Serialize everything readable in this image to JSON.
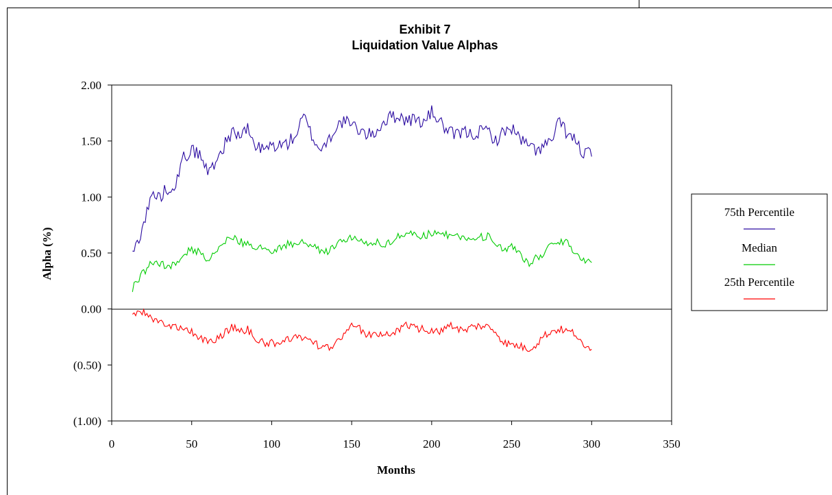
{
  "chart_data": {
    "type": "line",
    "title": "Exhibit 7",
    "subtitle": "Liquidation Value Alphas",
    "xlabel": "Months",
    "ylabel": "Alpha (%)",
    "xlim": [
      0,
      350
    ],
    "ylim": [
      -1.0,
      2.0
    ],
    "x_ticks": [
      "0",
      "50",
      "100",
      "150",
      "200",
      "250",
      "300",
      "350"
    ],
    "y_ticks": [
      "2.00",
      "1.50",
      "1.00",
      "0.50",
      "0.00",
      "(0.50)",
      "(1.00)"
    ],
    "x_tick_values": [
      0,
      50,
      100,
      150,
      200,
      250,
      300,
      350
    ],
    "y_tick_values": [
      2.0,
      1.5,
      1.0,
      0.5,
      0.0,
      -0.5,
      -1.0
    ],
    "grid": false,
    "zero_line": true,
    "legend_position": "right",
    "x_start": 13,
    "x_end": 300,
    "series": [
      {
        "name": "75th Percentile",
        "color": "#2a0aa0",
        "anchors": [
          [
            13,
            0.48
          ],
          [
            20,
            0.76
          ],
          [
            25,
            1.02
          ],
          [
            30,
            1.0
          ],
          [
            35,
            1.08
          ],
          [
            40,
            1.12
          ],
          [
            45,
            1.35
          ],
          [
            50,
            1.42
          ],
          [
            55,
            1.38
          ],
          [
            60,
            1.22
          ],
          [
            65,
            1.32
          ],
          [
            70,
            1.45
          ],
          [
            75,
            1.58
          ],
          [
            80,
            1.55
          ],
          [
            85,
            1.6
          ],
          [
            90,
            1.45
          ],
          [
            95,
            1.42
          ],
          [
            100,
            1.46
          ],
          [
            105,
            1.46
          ],
          [
            110,
            1.48
          ],
          [
            115,
            1.55
          ],
          [
            120,
            1.72
          ],
          [
            125,
            1.55
          ],
          [
            130,
            1.42
          ],
          [
            135,
            1.5
          ],
          [
            140,
            1.62
          ],
          [
            145,
            1.68
          ],
          [
            150,
            1.64
          ],
          [
            155,
            1.6
          ],
          [
            160,
            1.55
          ],
          [
            165,
            1.58
          ],
          [
            170,
            1.67
          ],
          [
            175,
            1.72
          ],
          [
            180,
            1.72
          ],
          [
            185,
            1.68
          ],
          [
            190,
            1.7
          ],
          [
            195,
            1.66
          ],
          [
            200,
            1.76
          ],
          [
            205,
            1.68
          ],
          [
            210,
            1.58
          ],
          [
            215,
            1.55
          ],
          [
            220,
            1.58
          ],
          [
            225,
            1.56
          ],
          [
            230,
            1.58
          ],
          [
            235,
            1.6
          ],
          [
            240,
            1.5
          ],
          [
            245,
            1.58
          ],
          [
            250,
            1.62
          ],
          [
            255,
            1.52
          ],
          [
            260,
            1.46
          ],
          [
            265,
            1.42
          ],
          [
            270,
            1.45
          ],
          [
            275,
            1.5
          ],
          [
            280,
            1.68
          ],
          [
            285,
            1.56
          ],
          [
            290,
            1.5
          ],
          [
            295,
            1.38
          ],
          [
            300,
            1.4
          ]
        ],
        "noise": 0.06
      },
      {
        "name": "Median",
        "color": "#00cc00",
        "anchors": [
          [
            13,
            0.18
          ],
          [
            18,
            0.3
          ],
          [
            22,
            0.35
          ],
          [
            25,
            0.42
          ],
          [
            30,
            0.4
          ],
          [
            35,
            0.38
          ],
          [
            40,
            0.4
          ],
          [
            45,
            0.5
          ],
          [
            50,
            0.54
          ],
          [
            55,
            0.5
          ],
          [
            60,
            0.42
          ],
          [
            65,
            0.5
          ],
          [
            70,
            0.6
          ],
          [
            75,
            0.65
          ],
          [
            80,
            0.6
          ],
          [
            85,
            0.58
          ],
          [
            90,
            0.56
          ],
          [
            95,
            0.54
          ],
          [
            100,
            0.52
          ],
          [
            105,
            0.55
          ],
          [
            110,
            0.58
          ],
          [
            115,
            0.58
          ],
          [
            120,
            0.6
          ],
          [
            125,
            0.55
          ],
          [
            130,
            0.53
          ],
          [
            135,
            0.5
          ],
          [
            140,
            0.58
          ],
          [
            145,
            0.62
          ],
          [
            150,
            0.64
          ],
          [
            155,
            0.62
          ],
          [
            160,
            0.6
          ],
          [
            165,
            0.6
          ],
          [
            170,
            0.56
          ],
          [
            175,
            0.6
          ],
          [
            180,
            0.66
          ],
          [
            185,
            0.68
          ],
          [
            190,
            0.66
          ],
          [
            195,
            0.65
          ],
          [
            200,
            0.68
          ],
          [
            205,
            0.7
          ],
          [
            210,
            0.66
          ],
          [
            215,
            0.66
          ],
          [
            220,
            0.64
          ],
          [
            225,
            0.62
          ],
          [
            230,
            0.64
          ],
          [
            235,
            0.65
          ],
          [
            240,
            0.6
          ],
          [
            245,
            0.5
          ],
          [
            250,
            0.55
          ],
          [
            255,
            0.5
          ],
          [
            260,
            0.4
          ],
          [
            265,
            0.45
          ],
          [
            270,
            0.5
          ],
          [
            275,
            0.58
          ],
          [
            280,
            0.6
          ],
          [
            285,
            0.6
          ],
          [
            290,
            0.5
          ],
          [
            295,
            0.44
          ],
          [
            300,
            0.43
          ]
        ],
        "noise": 0.035
      },
      {
        "name": "25th Percentile",
        "color": "#ff0000",
        "anchors": [
          [
            13,
            -0.04
          ],
          [
            18,
            -0.02
          ],
          [
            22,
            -0.03
          ],
          [
            25,
            -0.08
          ],
          [
            30,
            -0.12
          ],
          [
            35,
            -0.14
          ],
          [
            40,
            -0.16
          ],
          [
            45,
            -0.18
          ],
          [
            50,
            -0.2
          ],
          [
            55,
            -0.26
          ],
          [
            60,
            -0.3
          ],
          [
            65,
            -0.28
          ],
          [
            70,
            -0.22
          ],
          [
            75,
            -0.16
          ],
          [
            80,
            -0.2
          ],
          [
            85,
            -0.18
          ],
          [
            90,
            -0.26
          ],
          [
            95,
            -0.3
          ],
          [
            100,
            -0.3
          ],
          [
            105,
            -0.3
          ],
          [
            110,
            -0.26
          ],
          [
            115,
            -0.25
          ],
          [
            120,
            -0.26
          ],
          [
            125,
            -0.3
          ],
          [
            130,
            -0.33
          ],
          [
            135,
            -0.35
          ],
          [
            140,
            -0.3
          ],
          [
            145,
            -0.22
          ],
          [
            150,
            -0.15
          ],
          [
            155,
            -0.18
          ],
          [
            160,
            -0.24
          ],
          [
            165,
            -0.22
          ],
          [
            170,
            -0.24
          ],
          [
            175,
            -0.22
          ],
          [
            180,
            -0.18
          ],
          [
            185,
            -0.14
          ],
          [
            190,
            -0.17
          ],
          [
            195,
            -0.18
          ],
          [
            200,
            -0.2
          ],
          [
            205,
            -0.2
          ],
          [
            210,
            -0.14
          ],
          [
            215,
            -0.16
          ],
          [
            220,
            -0.2
          ],
          [
            225,
            -0.16
          ],
          [
            230,
            -0.15
          ],
          [
            235,
            -0.16
          ],
          [
            240,
            -0.2
          ],
          [
            245,
            -0.3
          ],
          [
            250,
            -0.32
          ],
          [
            255,
            -0.33
          ],
          [
            260,
            -0.36
          ],
          [
            265,
            -0.32
          ],
          [
            270,
            -0.24
          ],
          [
            275,
            -0.2
          ],
          [
            280,
            -0.18
          ],
          [
            285,
            -0.2
          ],
          [
            290,
            -0.22
          ],
          [
            295,
            -0.35
          ],
          [
            300,
            -0.34
          ]
        ],
        "noise": 0.035
      }
    ]
  }
}
